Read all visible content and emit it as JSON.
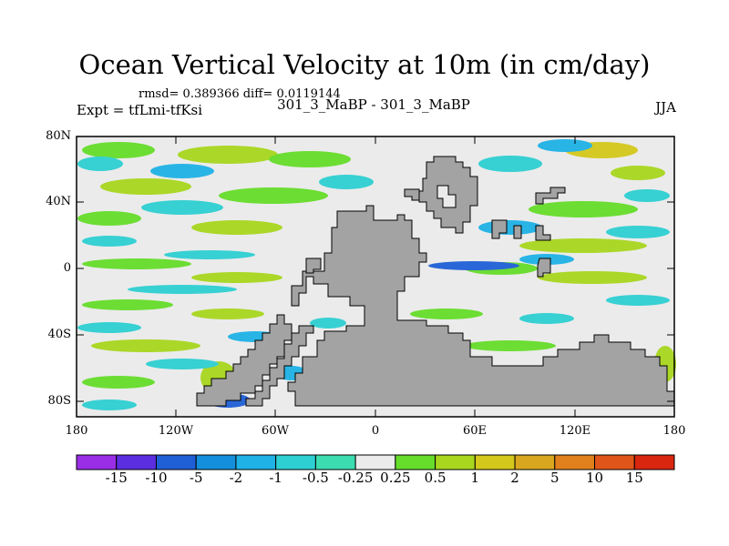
{
  "title": "Ocean Vertical Velocity at 10m (in cm/day)",
  "stats": "rmsd= 0.389366 diff= 0.0119144",
  "experiment": "Expt = tfLmi-tfKsi",
  "run_label": "301_3_MaBP - 301_3_MaBP",
  "season": "JJA",
  "map": {
    "lat_ticks": [
      "80N",
      "40N",
      "0",
      "40S",
      "80S"
    ],
    "lon_ticks": [
      "180",
      "120W",
      "60W",
      "0",
      "60E",
      "120E",
      "180"
    ],
    "land_color": "#a3a3a3",
    "ocean_background": "#ebebeb"
  },
  "colorbar": {
    "labels": [
      "-15",
      "-10",
      "-5",
      "-2",
      "-1",
      "-0.5",
      "-0.25",
      "0.25",
      "0.5",
      "1",
      "2",
      "5",
      "10",
      "15"
    ],
    "colors": [
      "#9a2ee6",
      "#5b2ee0",
      "#1f5fd6",
      "#148fdc",
      "#1fb2e6",
      "#2ecfd2",
      "#3bddb0",
      "#ebebeb",
      "#66dd2a",
      "#a8d61e",
      "#d4c81c",
      "#d9a71f",
      "#e0801c",
      "#e0551a",
      "#d9260f"
    ]
  }
}
